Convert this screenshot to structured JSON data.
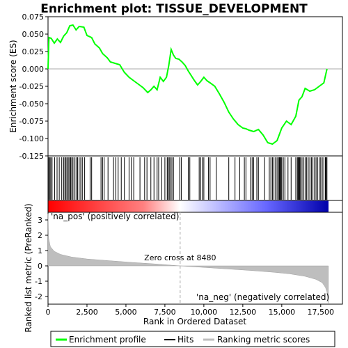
{
  "chart_data": {
    "type": "line",
    "title": "Enrichment plot: TISSUE_DEVELOPMENT",
    "xlabel": "Rank in Ordered Dataset",
    "ylabel_top": "Enrichment score (ES)",
    "ylabel_bottom": "Ranked list metric (PreRanked)",
    "xlim": [
      0,
      18000
    ],
    "ylim_top": [
      -0.125,
      0.075
    ],
    "ylim_bottom": [
      -2.5,
      3.5
    ],
    "x_ticks": [
      "0",
      "2,500",
      "5,000",
      "7,500",
      "10,000",
      "12,500",
      "15,000",
      "17,500"
    ],
    "x_tick_values": [
      0,
      2500,
      5000,
      7500,
      10000,
      12500,
      15000,
      17500
    ],
    "y_ticks_top": [
      "0.075",
      "0.050",
      "0.025",
      "0.000",
      "-0.025",
      "-0.050",
      "-0.075",
      "-0.100",
      "-0.125"
    ],
    "y_tick_values_top": [
      0.075,
      0.05,
      0.025,
      0.0,
      -0.025,
      -0.05,
      -0.075,
      -0.1,
      -0.125
    ],
    "y_ticks_bottom": [
      "3",
      "2",
      "1",
      "0",
      "-1",
      "-2"
    ],
    "y_tick_values_bottom": [
      3,
      2,
      1,
      0,
      -1,
      -2
    ],
    "zero_cross_label": "Zero cross at 8480",
    "zero_cross": 8480,
    "pos_label": "'na_pos' (positively correlated)",
    "neg_label": "'na_neg' (negatively correlated)",
    "es_profile": [
      [
        0,
        0.0
      ],
      [
        60,
        0.045
      ],
      [
        200,
        0.044
      ],
      [
        400,
        0.037
      ],
      [
        600,
        0.043
      ],
      [
        800,
        0.038
      ],
      [
        1000,
        0.047
      ],
      [
        1200,
        0.052
      ],
      [
        1400,
        0.062
      ],
      [
        1600,
        0.063
      ],
      [
        1800,
        0.056
      ],
      [
        2000,
        0.061
      ],
      [
        2300,
        0.06
      ],
      [
        2500,
        0.048
      ],
      [
        2800,
        0.045
      ],
      [
        3000,
        0.036
      ],
      [
        3300,
        0.03
      ],
      [
        3500,
        0.022
      ],
      [
        3800,
        0.016
      ],
      [
        4000,
        0.01
      ],
      [
        4300,
        0.008
      ],
      [
        4600,
        0.006
      ],
      [
        4900,
        -0.005
      ],
      [
        5200,
        -0.012
      ],
      [
        5500,
        -0.017
      ],
      [
        5800,
        -0.022
      ],
      [
        6100,
        -0.027
      ],
      [
        6400,
        -0.034
      ],
      [
        6600,
        -0.03
      ],
      [
        6800,
        -0.025
      ],
      [
        7000,
        -0.03
      ],
      [
        7200,
        -0.012
      ],
      [
        7400,
        -0.018
      ],
      [
        7600,
        -0.012
      ],
      [
        7750,
        0.005
      ],
      [
        7900,
        0.028
      ],
      [
        8050,
        0.02
      ],
      [
        8200,
        0.015
      ],
      [
        8400,
        0.014
      ],
      [
        8600,
        0.01
      ],
      [
        8800,
        0.005
      ],
      [
        9000,
        -0.003
      ],
      [
        9200,
        -0.01
      ],
      [
        9400,
        -0.017
      ],
      [
        9600,
        -0.023
      ],
      [
        9800,
        -0.018
      ],
      [
        10000,
        -0.012
      ],
      [
        10200,
        -0.017
      ],
      [
        10400,
        -0.02
      ],
      [
        10700,
        -0.025
      ],
      [
        11000,
        -0.036
      ],
      [
        11300,
        -0.048
      ],
      [
        11600,
        -0.062
      ],
      [
        11900,
        -0.072
      ],
      [
        12200,
        -0.08
      ],
      [
        12500,
        -0.085
      ],
      [
        12700,
        -0.086
      ],
      [
        12900,
        -0.088
      ],
      [
        13200,
        -0.09
      ],
      [
        13500,
        -0.087
      ],
      [
        13800,
        -0.095
      ],
      [
        14100,
        -0.106
      ],
      [
        14400,
        -0.108
      ],
      [
        14700,
        -0.103
      ],
      [
        15000,
        -0.085
      ],
      [
        15300,
        -0.075
      ],
      [
        15600,
        -0.08
      ],
      [
        15900,
        -0.068
      ],
      [
        16100,
        -0.045
      ],
      [
        16300,
        -0.04
      ],
      [
        16500,
        -0.028
      ],
      [
        16800,
        -0.032
      ],
      [
        17100,
        -0.03
      ],
      [
        17400,
        -0.025
      ],
      [
        17700,
        -0.02
      ],
      [
        17900,
        0.0
      ]
    ],
    "hit_ranks": [
      50,
      120,
      180,
      260,
      420,
      580,
      720,
      880,
      1000,
      1080,
      1150,
      1220,
      1300,
      1380,
      1450,
      1520,
      1600,
      1700,
      1800,
      1900,
      2000,
      2100,
      2200,
      2350,
      2700,
      2800,
      3400,
      3500,
      3600,
      3850,
      4200,
      4350,
      4500,
      4700,
      4900,
      5200,
      5350,
      5500,
      5900,
      6200,
      6350,
      6600,
      6800,
      7000,
      7100,
      7300,
      7500,
      7650,
      7700,
      7780,
      7850,
      7950,
      8050,
      8450,
      8550,
      9000,
      9100,
      9700,
      9800,
      9900,
      10000,
      10300,
      10400,
      10800,
      11600,
      12000,
      12300,
      12600,
      12700,
      13000,
      13100,
      13200,
      13400,
      13500,
      13900,
      14200,
      14300,
      14400,
      14500,
      14600,
      14700,
      14800,
      14850,
      14900,
      14950,
      15000,
      15100,
      15200,
      15400,
      15600,
      15900,
      16000,
      16050,
      16100,
      16150,
      16200,
      16300,
      16400,
      16500,
      16600,
      16700,
      16800,
      16900,
      17000,
      17100,
      17200,
      17300,
      17400,
      17500,
      17600,
      17700,
      17800,
      17850,
      17900
    ],
    "metric_curve": [
      [
        0,
        3.4
      ],
      [
        40,
        1.8
      ],
      [
        150,
        1.25
      ],
      [
        400,
        0.95
      ],
      [
        800,
        0.75
      ],
      [
        1500,
        0.58
      ],
      [
        2500,
        0.45
      ],
      [
        4000,
        0.33
      ],
      [
        5500,
        0.22
      ],
      [
        7000,
        0.12
      ],
      [
        8480,
        0.0
      ],
      [
        10000,
        -0.1
      ],
      [
        11500,
        -0.2
      ],
      [
        13000,
        -0.3
      ],
      [
        14500,
        -0.42
      ],
      [
        15500,
        -0.52
      ],
      [
        16500,
        -0.68
      ],
      [
        17200,
        -0.88
      ],
      [
        17600,
        -1.1
      ],
      [
        17800,
        -1.4
      ],
      [
        17900,
        -1.7
      ],
      [
        17990,
        -2.5
      ]
    ],
    "legend": [
      "Enrichment profile",
      "Hits",
      "Ranking metric scores"
    ],
    "colors": {
      "profile": "#00ff00",
      "hits": "#000000",
      "metric_fill": "#bebebe",
      "pos_bar": "#ff0000",
      "neg_bar": "#0000ff",
      "pos_text": "#ff0000",
      "neg_text": "#0000cc"
    }
  }
}
